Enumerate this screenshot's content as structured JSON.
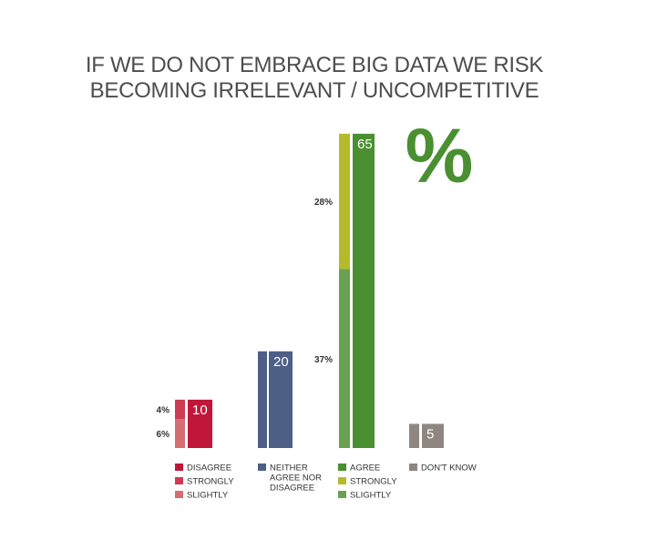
{
  "chart_data": {
    "type": "bar",
    "title_lines": [
      "IF WE DO NOT EMBRACE BIG DATA WE RISK",
      "BECOMING IRRELEVANT / UNCOMPETITIVE"
    ],
    "unit": "%",
    "grid": false,
    "groups": [
      {
        "key": "disagree",
        "total": 10,
        "total_label": "10",
        "color": "#c0163a",
        "segments": [
          {
            "name": "SLIGHTLY",
            "value": 6,
            "label": "6%",
            "color": "#d66d73"
          },
          {
            "name": "STRONGLY",
            "value": 4,
            "label": "4%",
            "color": "#cf3a55"
          }
        ],
        "legend": [
          {
            "text": "DISAGREE",
            "color": "#c0163a"
          },
          {
            "text": "STRONGLY",
            "color": "#cf3a55"
          },
          {
            "text": "SLIGHTLY",
            "color": "#d66d73"
          }
        ]
      },
      {
        "key": "neither",
        "total": 20,
        "total_label": "20",
        "color": "#4e5f86",
        "segments": [
          {
            "name": "NEITHER AGREE NOR DISAGREE",
            "value": 20,
            "label": "",
            "color": "#4e5f86"
          }
        ],
        "legend": [
          {
            "text": "NEITHER AGREE NOR DISAGREE",
            "lines": [
              "NEITHER",
              "AGREE NOR",
              "DISAGREE"
            ],
            "color": "#4e5f86"
          }
        ]
      },
      {
        "key": "agree",
        "total": 65,
        "total_label": "65",
        "color": "#4a8f31",
        "segments": [
          {
            "name": "SLIGHTLY",
            "value": 37,
            "label": "37%",
            "color": "#6aa150"
          },
          {
            "name": "STRONGLY",
            "value": 28,
            "label": "28%",
            "color": "#b4bb2b"
          }
        ],
        "legend": [
          {
            "text": "AGREE",
            "color": "#4a8f31"
          },
          {
            "text": "STRONGLY",
            "color": "#b4bb2b"
          },
          {
            "text": "SLIGHTLY",
            "color": "#6aa150"
          }
        ]
      },
      {
        "key": "dont_know",
        "total": 5,
        "total_label": "5",
        "color": "#8f8681",
        "segments": [
          {
            "name": "DON'T KNOW",
            "value": 5,
            "label": "",
            "color": "#8f8681"
          }
        ],
        "legend": [
          {
            "text": "DON'T KNOW",
            "color": "#8f8681"
          }
        ]
      }
    ]
  },
  "colors": {
    "title": "#4d4d4d",
    "percent_sign": "#4a8f31",
    "background": "#ffffff"
  }
}
